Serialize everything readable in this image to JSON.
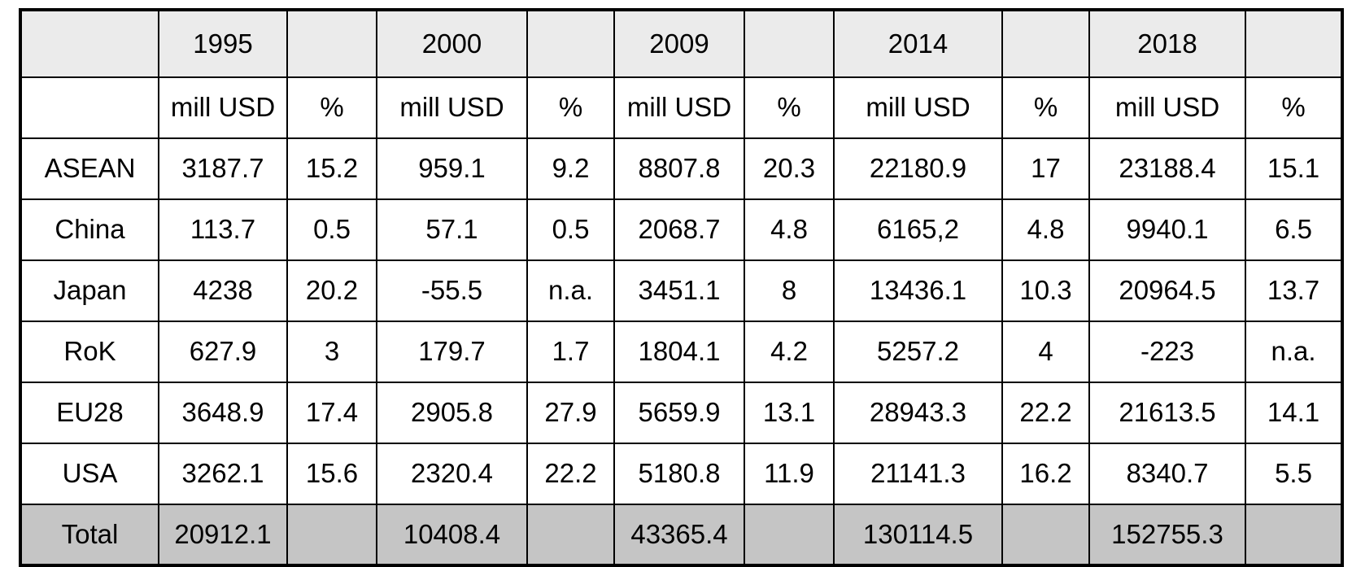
{
  "table": {
    "header": {
      "corner": "",
      "years": [
        "1995",
        "2000",
        "2009",
        "2014",
        "2018"
      ],
      "unit_label": "mill USD",
      "pct_label": "%"
    },
    "rows": [
      {
        "label": "ASEAN",
        "values": [
          "3187.7",
          "15.2",
          "959.1",
          "9.2",
          "8807.8",
          "20.3",
          "22180.9",
          "17",
          "23188.4",
          "15.1"
        ]
      },
      {
        "label": "China",
        "values": [
          "113.7",
          "0.5",
          "57.1",
          "0.5",
          "2068.7",
          "4.8",
          "6165,2",
          "4.8",
          "9940.1",
          "6.5"
        ]
      },
      {
        "label": "Japan",
        "values": [
          "4238",
          "20.2",
          "-55.5",
          "n.a.",
          "3451.1",
          "8",
          "13436.1",
          "10.3",
          "20964.5",
          "13.7"
        ]
      },
      {
        "label": "RoK",
        "values": [
          "627.9",
          "3",
          "179.7",
          "1.7",
          "1804.1",
          "4.2",
          "5257.2",
          "4",
          "-223",
          "n.a."
        ]
      },
      {
        "label": "EU28",
        "values": [
          "3648.9",
          "17.4",
          "2905.8",
          "27.9",
          "5659.9",
          "13.1",
          "28943.3",
          "22.2",
          "21613.5",
          "14.1"
        ]
      },
      {
        "label": "USA",
        "values": [
          "3262.1",
          "15.6",
          "2320.4",
          "22.2",
          "5180.8",
          "11.9",
          "21141.3",
          "16.2",
          "8340.7",
          "5.5"
        ]
      }
    ],
    "total_row": {
      "label": "Total",
      "values": [
        "20912.1",
        "",
        "10408.4",
        "",
        "43365.4",
        "",
        "130114.5",
        "",
        "152755.3",
        ""
      ]
    }
  },
  "colors": {
    "page_bg": "#ffffff",
    "header_bg": "#ebebeb",
    "total_bg": "#c5c5c5",
    "border": "#000000",
    "text": "#000000"
  }
}
